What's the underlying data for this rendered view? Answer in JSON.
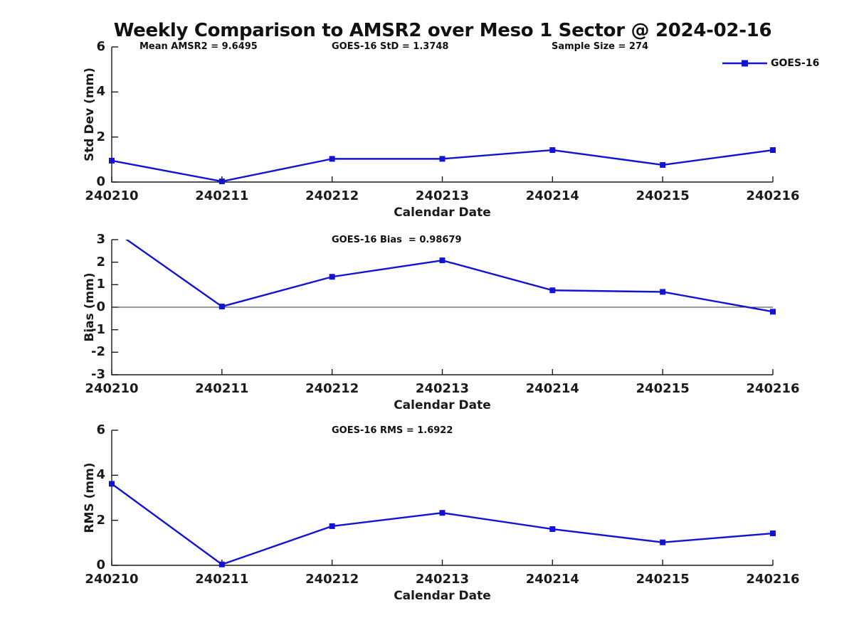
{
  "header": {
    "title": "Weekly Comparison to AMSR2 over Meso 1 Sector @ 2024-02-16"
  },
  "legend": {
    "label": "GOES-16"
  },
  "colors": {
    "series": "#1313d2",
    "axis": "#1a1a1a",
    "zeroline": "#333333",
    "text": "#111111"
  },
  "chart_data": [
    {
      "id": "std-dev",
      "type": "line",
      "annotations": [
        "Mean AMSR2 = 9.6495",
        "GOES-16 StD = 1.3748",
        "Sample Size = 274"
      ],
      "xlabel": "Calendar Date",
      "ylabel": "Std Dev (mm)",
      "categories": [
        "240210",
        "240211",
        "240212",
        "240213",
        "240214",
        "240215",
        "240216"
      ],
      "series": [
        {
          "name": "GOES-16",
          "values": [
            0.95,
            0.03,
            1.03,
            1.03,
            1.42,
            0.76,
            1.42
          ]
        }
      ],
      "ylim": [
        0,
        6
      ],
      "yticks": [
        0,
        2,
        4,
        6
      ],
      "zeroline": false,
      "legend": true,
      "legend_position": "top-right-outside",
      "grid": false
    },
    {
      "id": "bias",
      "type": "line",
      "annotations": [
        "GOES-16 Bias  = 0.98679"
      ],
      "xlabel": "Calendar Date",
      "ylabel": "Bias (mm)",
      "categories": [
        "240210",
        "240211",
        "240212",
        "240213",
        "240214",
        "240215",
        "240216"
      ],
      "series": [
        {
          "name": "GOES-16",
          "values": [
            3.47,
            0.03,
            1.35,
            2.08,
            0.75,
            0.68,
            -0.2
          ]
        }
      ],
      "ylim": [
        -3,
        3
      ],
      "yticks": [
        -3,
        -2,
        -1,
        0,
        1,
        2,
        3
      ],
      "zeroline": true,
      "legend": false,
      "grid": false
    },
    {
      "id": "rms",
      "type": "line",
      "annotations": [
        "GOES-16 RMS = 1.6922"
      ],
      "xlabel": "Calendar Date",
      "ylabel": "RMS (mm)",
      "categories": [
        "240210",
        "240211",
        "240212",
        "240213",
        "240214",
        "240215",
        "240216"
      ],
      "series": [
        {
          "name": "GOES-16",
          "values": [
            3.62,
            0.04,
            1.74,
            2.33,
            1.61,
            1.02,
            1.42
          ]
        }
      ],
      "ylim": [
        0,
        6
      ],
      "yticks": [
        0,
        2,
        4,
        6
      ],
      "zeroline": false,
      "legend": false,
      "grid": false
    }
  ]
}
